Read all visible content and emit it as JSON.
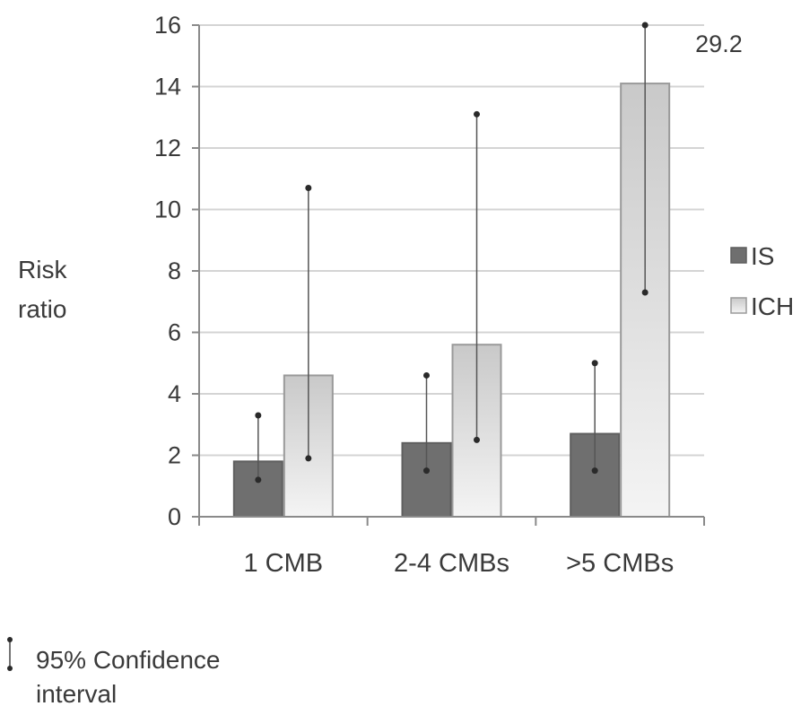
{
  "chart_data": {
    "type": "bar",
    "ylabel": [
      "Risk",
      "ratio"
    ],
    "xlabel": "",
    "categories": [
      "1 CMB",
      "2-4 CMBs",
      ">5 CMBs"
    ],
    "ylim": [
      0,
      16
    ],
    "yticks": [
      0,
      2,
      4,
      6,
      8,
      10,
      12,
      14,
      16
    ],
    "grid": true,
    "legend_position": "right",
    "series": [
      {
        "name": "IS",
        "values": [
          1.8,
          2.4,
          2.7
        ],
        "ci_low": [
          1.2,
          1.5,
          1.5
        ],
        "ci_high": [
          3.3,
          4.6,
          5.0
        ],
        "color": "#6f6f6f"
      },
      {
        "name": "ICH",
        "values": [
          4.6,
          5.6,
          14.1
        ],
        "ci_low": [
          1.9,
          2.5,
          7.3
        ],
        "ci_high": [
          10.7,
          13.1,
          29.2
        ],
        "color": "#e6e6e6"
      }
    ],
    "annotations": [
      {
        "text": "29.2",
        "series": "ICH",
        "category": ">5 CMBs"
      }
    ],
    "note": [
      "95% Confidence",
      "interval"
    ]
  }
}
